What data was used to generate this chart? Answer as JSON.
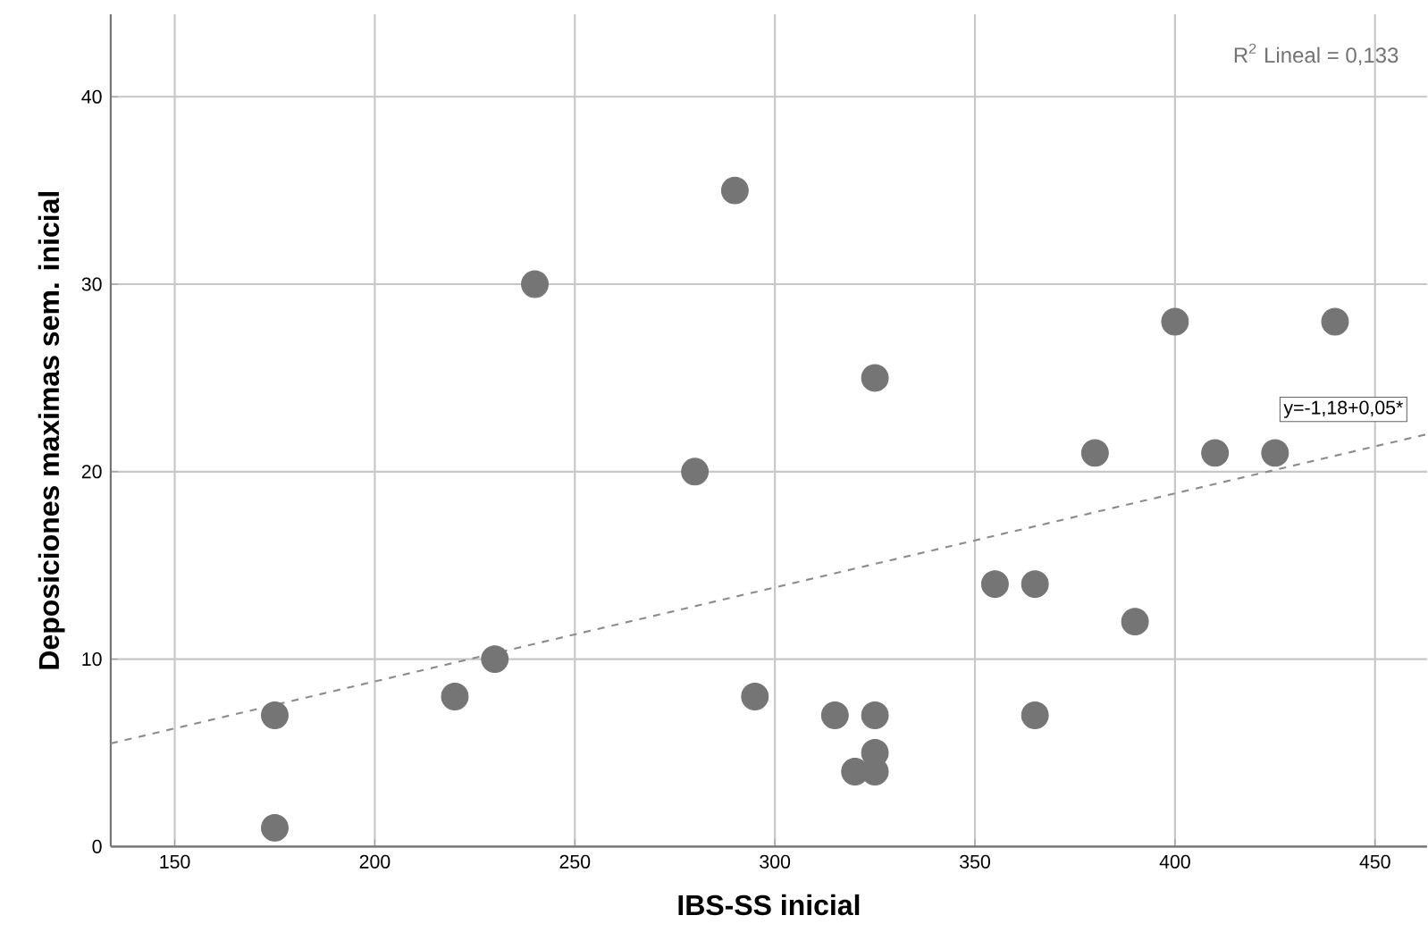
{
  "chart_data": {
    "type": "scatter",
    "xlabel": "IBS-SS inicial",
    "ylabel": "Deposiciones maximas sem. inicial",
    "xlim": [
      134,
      463
    ],
    "ylim": [
      0,
      44.4
    ],
    "xticks": [
      150,
      200,
      250,
      300,
      350,
      400,
      450
    ],
    "yticks": [
      0,
      10,
      20,
      30,
      40
    ],
    "grid": true,
    "series": [
      {
        "color": "#757575",
        "marker": "circle",
        "x": [
          175,
          175,
          220,
          230,
          240,
          280,
          290,
          295,
          315,
          320,
          325,
          325,
          325,
          325,
          355,
          365,
          365,
          380,
          390,
          400,
          410,
          425,
          440
        ],
        "values": [
          7,
          1,
          8,
          10,
          30,
          20,
          35,
          8,
          7,
          4,
          4,
          5,
          7,
          25,
          14,
          14,
          7,
          21,
          12,
          28,
          21,
          21,
          28
        ]
      },
      {
        "type": "line",
        "color": "#8c8c8c",
        "line_style": "dashed",
        "marker": "none",
        "x": [
          134,
          463
        ],
        "values": [
          5.5,
          22
        ]
      }
    ],
    "annotations": [
      "R$^{2}$ Lineal = 0,133",
      "y=-1,18+0,05*"
    ]
  }
}
